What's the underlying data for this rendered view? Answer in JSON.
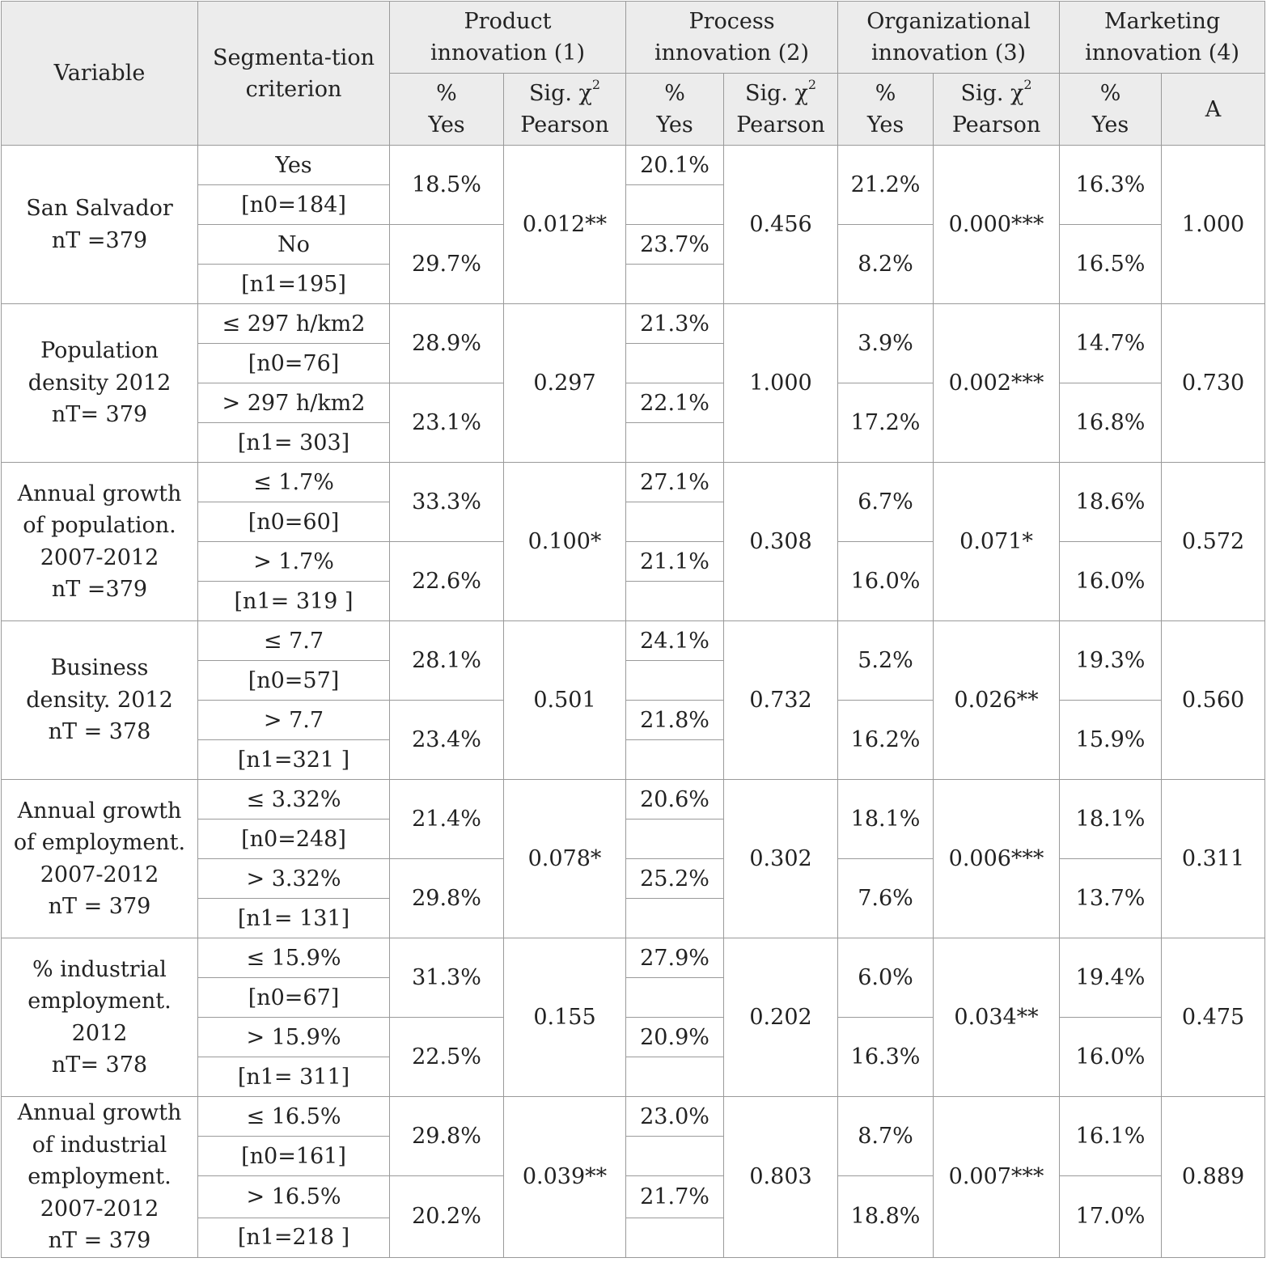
{
  "header": {
    "variable": "Variable",
    "segmentation": "Segmenta-tion criterion",
    "groups": [
      {
        "l1": "Product",
        "l2": "innovation (1)"
      },
      {
        "l1": "Process",
        "l2": "innovation (2)"
      },
      {
        "l1": "Organizational",
        "l2": "innovation (3)"
      },
      {
        "l1": "Marketing",
        "l2": "innovation (4)"
      }
    ],
    "pct_yes": {
      "l1": "%",
      "l2": "Yes"
    },
    "sig": {
      "l1a": "Sig. χ",
      "sup": "2",
      "l2": "Pearson"
    },
    "last_col": "A"
  },
  "rows": [
    {
      "variable": [
        "San Salvador",
        "nT =379"
      ],
      "crit": [
        "Yes",
        "[n0=184]",
        "No",
        "[n1=195]"
      ],
      "product": [
        "18.5%",
        "29.7%"
      ],
      "product_sig": "0.012**",
      "process": [
        "20.1%",
        "23.7%"
      ],
      "process_sig": "0.456",
      "org": [
        "21.2%",
        "8.2%"
      ],
      "org_sig": "0.000***",
      "mkt": [
        "16.3%",
        "16.5%"
      ],
      "mkt_a": "1.000"
    },
    {
      "variable": [
        "Population",
        "density 2012",
        "nT= 379"
      ],
      "crit": [
        "≤ 297 h/km2",
        "[n0=76]",
        "> 297 h/km2",
        "[n1= 303]"
      ],
      "product": [
        "28.9%",
        "23.1%"
      ],
      "product_sig": "0.297",
      "process": [
        "21.3%",
        "22.1%"
      ],
      "process_sig": "1.000",
      "org": [
        "3.9%",
        "17.2%"
      ],
      "org_sig": "0.002***",
      "mkt": [
        "14.7%",
        "16.8%"
      ],
      "mkt_a": "0.730"
    },
    {
      "variable": [
        "Annual growth",
        "of population.",
        "2007-2012",
        "nT =379"
      ],
      "crit": [
        "≤ 1.7%",
        "[n0=60]",
        "> 1.7%",
        "[n1= 319 ]"
      ],
      "product": [
        "33.3%",
        "22.6%"
      ],
      "product_sig": "0.100*",
      "process": [
        "27.1%",
        "21.1%"
      ],
      "process_sig": "0.308",
      "org": [
        "6.7%",
        "16.0%"
      ],
      "org_sig": "0.071*",
      "mkt": [
        "18.6%",
        "16.0%"
      ],
      "mkt_a": "0.572"
    },
    {
      "variable": [
        "Business",
        "density. 2012",
        "nT = 378"
      ],
      "crit": [
        "≤ 7.7",
        "[n0=57]",
        "> 7.7",
        "[n1=321 ]"
      ],
      "product": [
        "28.1%",
        "23.4%"
      ],
      "product_sig": "0.501",
      "process": [
        "24.1%",
        "21.8%"
      ],
      "process_sig": "0.732",
      "org": [
        "5.2%",
        "16.2%"
      ],
      "org_sig": "0.026**",
      "mkt": [
        "19.3%",
        "15.9%"
      ],
      "mkt_a": "0.560"
    },
    {
      "variable": [
        "Annual growth",
        "of employment.",
        "2007-2012",
        "nT = 379"
      ],
      "crit": [
        "≤ 3.32%",
        "[n0=248]",
        "> 3.32%",
        "[n1= 131]"
      ],
      "product": [
        "21.4%",
        "29.8%"
      ],
      "product_sig": "0.078*",
      "process": [
        "20.6%",
        "25.2%"
      ],
      "process_sig": "0.302",
      "org": [
        "18.1%",
        "7.6%"
      ],
      "org_sig": "0.006***",
      "mkt": [
        "18.1%",
        "13.7%"
      ],
      "mkt_a": "0.311"
    },
    {
      "variable": [
        "% industrial",
        "employment.",
        "2012",
        "nT= 378"
      ],
      "crit": [
        "≤ 15.9%",
        "[n0=67]",
        "> 15.9%",
        "[n1= 311]"
      ],
      "product": [
        "31.3%",
        "22.5%"
      ],
      "product_sig": "0.155",
      "process": [
        "27.9%",
        "20.9%"
      ],
      "process_sig": "0.202",
      "org": [
        "6.0%",
        "16.3%"
      ],
      "org_sig": "0.034**",
      "mkt": [
        "19.4%",
        "16.0%"
      ],
      "mkt_a": "0.475"
    },
    {
      "variable": [
        "Annual growth",
        "of industrial",
        "employment.",
        "2007-2012",
        "nT = 379"
      ],
      "crit": [
        "≤ 16.5%",
        "[n0=161]",
        "> 16.5%",
        "[n1=218 ]"
      ],
      "product": [
        "29.8%",
        "20.2%"
      ],
      "product_sig": "0.039**",
      "process": [
        "23.0%",
        "21.7%"
      ],
      "process_sig": "0.803",
      "org": [
        "8.7%",
        "18.8%"
      ],
      "org_sig": "0.007***",
      "mkt": [
        "16.1%",
        "17.0%"
      ],
      "mkt_a": "0.889"
    }
  ]
}
